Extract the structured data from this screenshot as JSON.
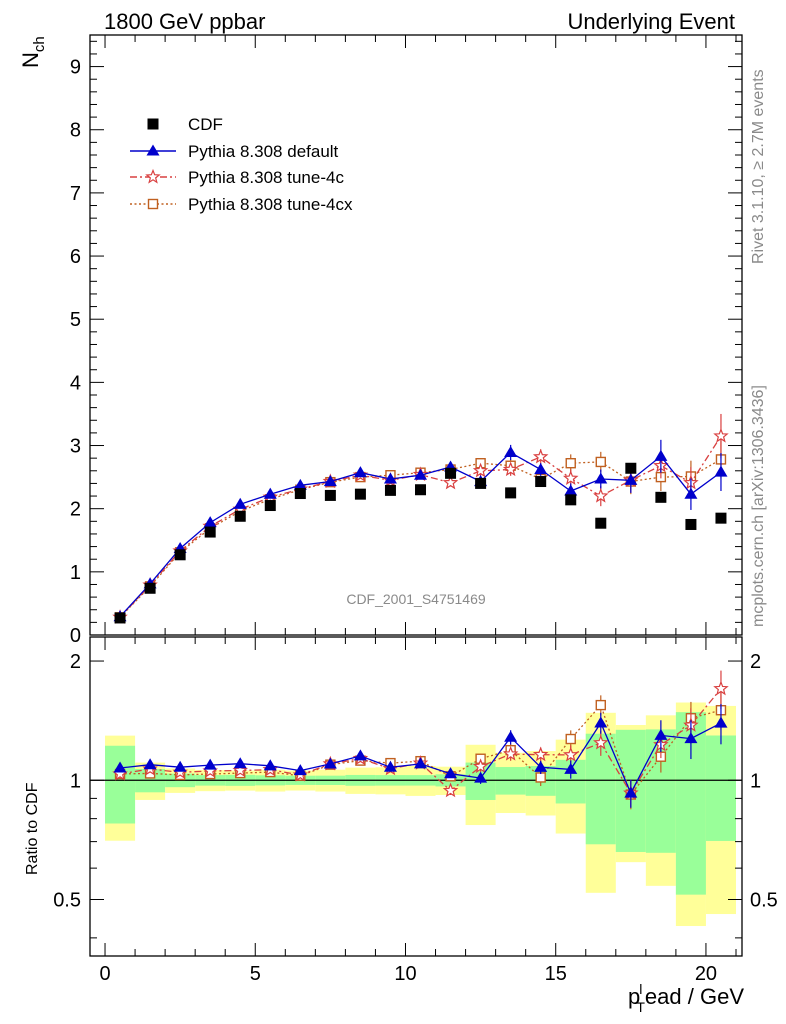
{
  "header": {
    "left_title": "1800 GeV ppbar",
    "right_title": "Underlying Event"
  },
  "side_labels": {
    "rivet": "Rivet 3.1.10, ≥ 2.7M events",
    "mcplots": "mcplots.cern.ch [arXiv:1306.3436]"
  },
  "watermark": "CDF_2001_S4751469",
  "chart_data": {
    "type": "scatter",
    "title": "",
    "xlabel": "p_T^lead / GeV",
    "xlabel_main": "p",
    "xlabel_sub": "T",
    "xlabel_sup": "l",
    "xlabel_rest": "ead / GeV",
    "ylabel_main": "N",
    "ylabel_sub": "ch",
    "ylabel_ratio": "Ratio to CDF",
    "xlim": [
      -0.5,
      21.2
    ],
    "ylim_main": [
      0,
      9.5
    ],
    "ylim_ratio": [
      0.36,
      2.3
    ],
    "ratio_log": true,
    "x_ticks": [
      0,
      5,
      10,
      15,
      20
    ],
    "y_ticks_main": [
      0,
      1,
      2,
      3,
      4,
      5,
      6,
      7,
      8,
      9
    ],
    "y_ticks_ratio": [
      0.5,
      1,
      2
    ],
    "legend_position": "top-left",
    "x": [
      0.5,
      1.5,
      2.5,
      3.5,
      4.5,
      5.5,
      6.5,
      7.5,
      8.5,
      9.5,
      10.5,
      11.5,
      12.5,
      13.5,
      14.5,
      15.5,
      16.5,
      17.5,
      18.5,
      19.5,
      20.5
    ],
    "x_edges": [
      0,
      1,
      2,
      3,
      4,
      5,
      6,
      7,
      8,
      9,
      10,
      11,
      12,
      13,
      14,
      15,
      16,
      17,
      18,
      19,
      20,
      21
    ],
    "series": [
      {
        "name": "CDF",
        "color": "#000000",
        "marker": "square-filled",
        "line": "none",
        "values": [
          0.27,
          0.74,
          1.27,
          1.63,
          1.88,
          2.05,
          2.24,
          2.21,
          2.23,
          2.29,
          2.3,
          2.56,
          2.4,
          2.25,
          2.43,
          2.14,
          1.77,
          2.64,
          2.18,
          1.75,
          1.85
        ],
        "band_inner": [
          0.06,
          0.05,
          0.05,
          0.05,
          0.06,
          0.06,
          0.06,
          0.06,
          0.07,
          0.07,
          0.07,
          0.09,
          0.26,
          0.18,
          0.21,
          0.27,
          0.55,
          0.9,
          0.75,
          0.85,
          0.55
        ],
        "band_outer": [
          0.08,
          0.08,
          0.09,
          0.1,
          0.11,
          0.13,
          0.13,
          0.14,
          0.17,
          0.18,
          0.2,
          0.21,
          0.55,
          0.39,
          0.45,
          0.57,
          0.85,
          1.0,
          1.0,
          1.0,
          1.0
        ]
      },
      {
        "name": "Pythia 8.308 default",
        "color": "#0000cc",
        "marker": "triangle-filled",
        "line": "solid",
        "values": [
          0.29,
          0.81,
          1.37,
          1.78,
          2.07,
          2.23,
          2.37,
          2.43,
          2.57,
          2.47,
          2.53,
          2.66,
          2.43,
          2.89,
          2.62,
          2.28,
          2.47,
          2.45,
          2.83,
          2.23,
          2.58
        ],
        "errors": [
          0.01,
          0.01,
          0.01,
          0.01,
          0.02,
          0.02,
          0.03,
          0.03,
          0.03,
          0.04,
          0.05,
          0.06,
          0.08,
          0.12,
          0.1,
          0.12,
          0.15,
          0.2,
          0.26,
          0.25,
          0.3
        ]
      },
      {
        "name": "Pythia 8.308 tune-4c",
        "color": "#d94040",
        "marker": "star-open",
        "line": "dashdot",
        "values": [
          0.28,
          0.79,
          1.33,
          1.72,
          1.99,
          2.18,
          2.31,
          2.43,
          2.53,
          2.45,
          2.54,
          2.41,
          2.6,
          2.62,
          2.82,
          2.48,
          2.2,
          2.45,
          2.68,
          2.41,
          3.15
        ],
        "errors": [
          0.01,
          0.01,
          0.01,
          0.01,
          0.02,
          0.02,
          0.03,
          0.03,
          0.03,
          0.04,
          0.05,
          0.06,
          0.08,
          0.1,
          0.12,
          0.14,
          0.16,
          0.2,
          0.2,
          0.25,
          0.35
        ]
      },
      {
        "name": "Pythia 8.308 tune-4cx",
        "color": "#c06020",
        "marker": "square-open",
        "line": "dotted",
        "values": [
          0.28,
          0.77,
          1.31,
          1.69,
          1.96,
          2.15,
          2.3,
          2.42,
          2.5,
          2.53,
          2.57,
          2.62,
          2.72,
          2.68,
          2.47,
          2.72,
          2.74,
          2.43,
          2.5,
          2.51,
          2.78
        ],
        "errors": [
          0.01,
          0.01,
          0.01,
          0.01,
          0.02,
          0.02,
          0.03,
          0.03,
          0.03,
          0.04,
          0.05,
          0.06,
          0.08,
          0.1,
          0.12,
          0.14,
          0.16,
          0.2,
          0.22,
          0.25,
          0.3
        ]
      }
    ]
  }
}
